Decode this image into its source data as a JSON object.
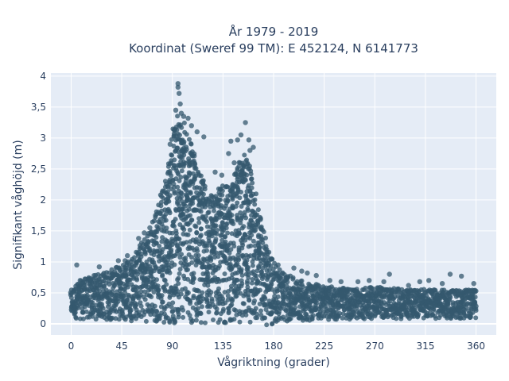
{
  "chart_data": {
    "type": "scatter",
    "title": "År 1979 - 2019",
    "subtitle": "Koordinat (Sweref 99 TM): E 452124, N 6141773",
    "xlabel": "Vågriktning (grader)",
    "ylabel": "Signifikant våghöjd (m)",
    "xlim": [
      -18,
      378
    ],
    "ylim": [
      -0.18,
      4.05
    ],
    "xticks": [
      0,
      45,
      90,
      135,
      180,
      225,
      270,
      315,
      360
    ],
    "xtick_labels": [
      "0",
      "45",
      "90",
      "135",
      "180",
      "225",
      "270",
      "315",
      "360"
    ],
    "yticks": [
      0,
      0.5,
      1,
      1.5,
      2,
      2.5,
      3,
      3.5,
      4
    ],
    "ytick_labels": [
      "0",
      "0,5",
      "1",
      "1,5",
      "2",
      "2,5",
      "3",
      "3,5",
      "4"
    ],
    "grid": true,
    "marker_color": "#34586e",
    "plot_bg": "#e5ecf6",
    "envelope": {
      "x": [
        0,
        5,
        10,
        20,
        30,
        45,
        60,
        70,
        80,
        85,
        90,
        95,
        100,
        105,
        110,
        115,
        120,
        125,
        130,
        135,
        140,
        145,
        150,
        155,
        160,
        165,
        170,
        175,
        180,
        190,
        200,
        210,
        225,
        240,
        255,
        270,
        285,
        300,
        315,
        330,
        345,
        360
      ],
      "y_max": [
        0.55,
        0.65,
        0.72,
        0.78,
        0.85,
        0.95,
        1.25,
        1.55,
        2.1,
        2.6,
        3.1,
        3.4,
        3.3,
        3.0,
        2.7,
        2.4,
        2.25,
        2.1,
        2.15,
        2.3,
        2.2,
        2.4,
        2.7,
        2.75,
        2.45,
        2.0,
        1.6,
        1.3,
        1.0,
        0.82,
        0.72,
        0.68,
        0.62,
        0.58,
        0.56,
        0.6,
        0.58,
        0.55,
        0.56,
        0.55,
        0.55,
        0.55
      ],
      "y_min": [
        0.1,
        0.08,
        0.07,
        0.07,
        0.06,
        0.05,
        0.04,
        0.03,
        0.02,
        0.01,
        0.0,
        0.0,
        0.0,
        0.0,
        0.0,
        0.0,
        0.0,
        0.0,
        0.0,
        0.0,
        0.0,
        0.0,
        0.0,
        0.0,
        0.0,
        0.0,
        -0.02,
        -0.02,
        -0.01,
        0.02,
        0.04,
        0.05,
        0.06,
        0.07,
        0.07,
        0.08,
        0.08,
        0.08,
        0.08,
        0.08,
        0.08,
        0.08
      ]
    },
    "outliers": [
      {
        "x": 95,
        "y": 3.88
      },
      {
        "x": 95,
        "y": 3.82
      },
      {
        "x": 96,
        "y": 3.72
      },
      {
        "x": 97,
        "y": 3.55
      },
      {
        "x": 93,
        "y": 3.45
      },
      {
        "x": 98,
        "y": 3.4
      },
      {
        "x": 100,
        "y": 3.35
      },
      {
        "x": 104,
        "y": 3.32
      },
      {
        "x": 107,
        "y": 3.2
      },
      {
        "x": 112,
        "y": 3.1
      },
      {
        "x": 118,
        "y": 3.02
      },
      {
        "x": 88,
        "y": 2.9
      },
      {
        "x": 155,
        "y": 3.25
      },
      {
        "x": 151,
        "y": 3.05
      },
      {
        "x": 158,
        "y": 2.97
      },
      {
        "x": 148,
        "y": 2.97
      },
      {
        "x": 142,
        "y": 2.95
      },
      {
        "x": 162,
        "y": 2.85
      },
      {
        "x": 159,
        "y": 2.8
      },
      {
        "x": 140,
        "y": 2.75
      },
      {
        "x": 145,
        "y": 2.6
      },
      {
        "x": 134,
        "y": 2.4
      },
      {
        "x": 128,
        "y": 2.45
      },
      {
        "x": 5,
        "y": 0.95
      },
      {
        "x": 8,
        "y": 0.7
      },
      {
        "x": 25,
        "y": 0.92
      },
      {
        "x": 42,
        "y": 1.02
      },
      {
        "x": 50,
        "y": 1.1
      },
      {
        "x": 48,
        "y": 1.02
      },
      {
        "x": 60,
        "y": 1.38
      },
      {
        "x": 65,
        "y": 1.47
      },
      {
        "x": 70,
        "y": 1.55
      },
      {
        "x": 75,
        "y": 1.75
      },
      {
        "x": 198,
        "y": 0.9
      },
      {
        "x": 205,
        "y": 0.85
      },
      {
        "x": 210,
        "y": 0.82
      },
      {
        "x": 218,
        "y": 0.78
      },
      {
        "x": 230,
        "y": 0.7
      },
      {
        "x": 240,
        "y": 0.68
      },
      {
        "x": 255,
        "y": 0.68
      },
      {
        "x": 265,
        "y": 0.7
      },
      {
        "x": 278,
        "y": 0.68
      },
      {
        "x": 283,
        "y": 0.8
      },
      {
        "x": 300,
        "y": 0.62
      },
      {
        "x": 310,
        "y": 0.68
      },
      {
        "x": 318,
        "y": 0.7
      },
      {
        "x": 330,
        "y": 0.65
      },
      {
        "x": 337,
        "y": 0.8
      },
      {
        "x": 347,
        "y": 0.77
      },
      {
        "x": 358,
        "y": 0.65
      },
      {
        "x": 178,
        "y": 1.05
      },
      {
        "x": 184,
        "y": 0.95
      }
    ]
  }
}
